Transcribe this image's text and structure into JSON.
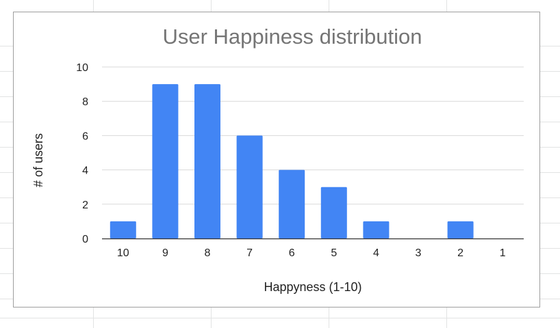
{
  "chart_data": {
    "type": "bar",
    "title": "User Happiness distribution",
    "xlabel": "Happyness (1-10)",
    "ylabel": "# of users",
    "categories": [
      "10",
      "9",
      "8",
      "7",
      "6",
      "5",
      "4",
      "3",
      "2",
      "1"
    ],
    "values": [
      1,
      9,
      9,
      6,
      4,
      3,
      1,
      0,
      1,
      0
    ],
    "ylim": [
      0,
      10
    ],
    "yticks": [
      "0",
      "2",
      "4",
      "6",
      "8",
      "10"
    ],
    "grid": true,
    "legend": "none",
    "colors": {
      "bar": "#4285f4",
      "title": "#757575",
      "axis_text": "#222222",
      "gridline": "#d9d9d9",
      "baseline": "#333333"
    }
  }
}
